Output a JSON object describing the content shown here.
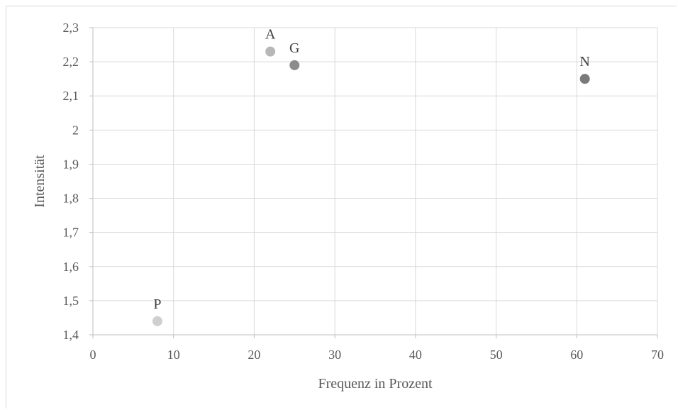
{
  "chart_data": {
    "type": "scatter",
    "title": "",
    "xlabel": "Frequenz in Prozent",
    "ylabel": "Intensität",
    "xlim": [
      0,
      70
    ],
    "ylim": [
      1.4,
      2.3
    ],
    "xticks": [
      0,
      10,
      20,
      30,
      40,
      50,
      60,
      70
    ],
    "yticks": [
      1.4,
      1.5,
      1.6,
      1.7,
      1.8,
      1.9,
      2.0,
      2.1,
      2.2,
      2.3
    ],
    "xtick_labels": [
      "0",
      "10",
      "20",
      "30",
      "40",
      "50",
      "60",
      "70"
    ],
    "ytick_labels": [
      "1,4",
      "1,5",
      "1,6",
      "1,7",
      "1,8",
      "1,9",
      "2",
      "2,1",
      "2,2",
      "2,3"
    ],
    "grid": true,
    "points": [
      {
        "label": "A",
        "x": 22,
        "y": 2.23,
        "color": "#b7b7b7"
      },
      {
        "label": "G",
        "x": 25,
        "y": 2.19,
        "color": "#8c8c8c"
      },
      {
        "label": "N",
        "x": 61,
        "y": 2.15,
        "color": "#7a7a7a"
      },
      {
        "label": "P",
        "x": 8,
        "y": 1.44,
        "color": "#cfcfcf"
      }
    ]
  }
}
